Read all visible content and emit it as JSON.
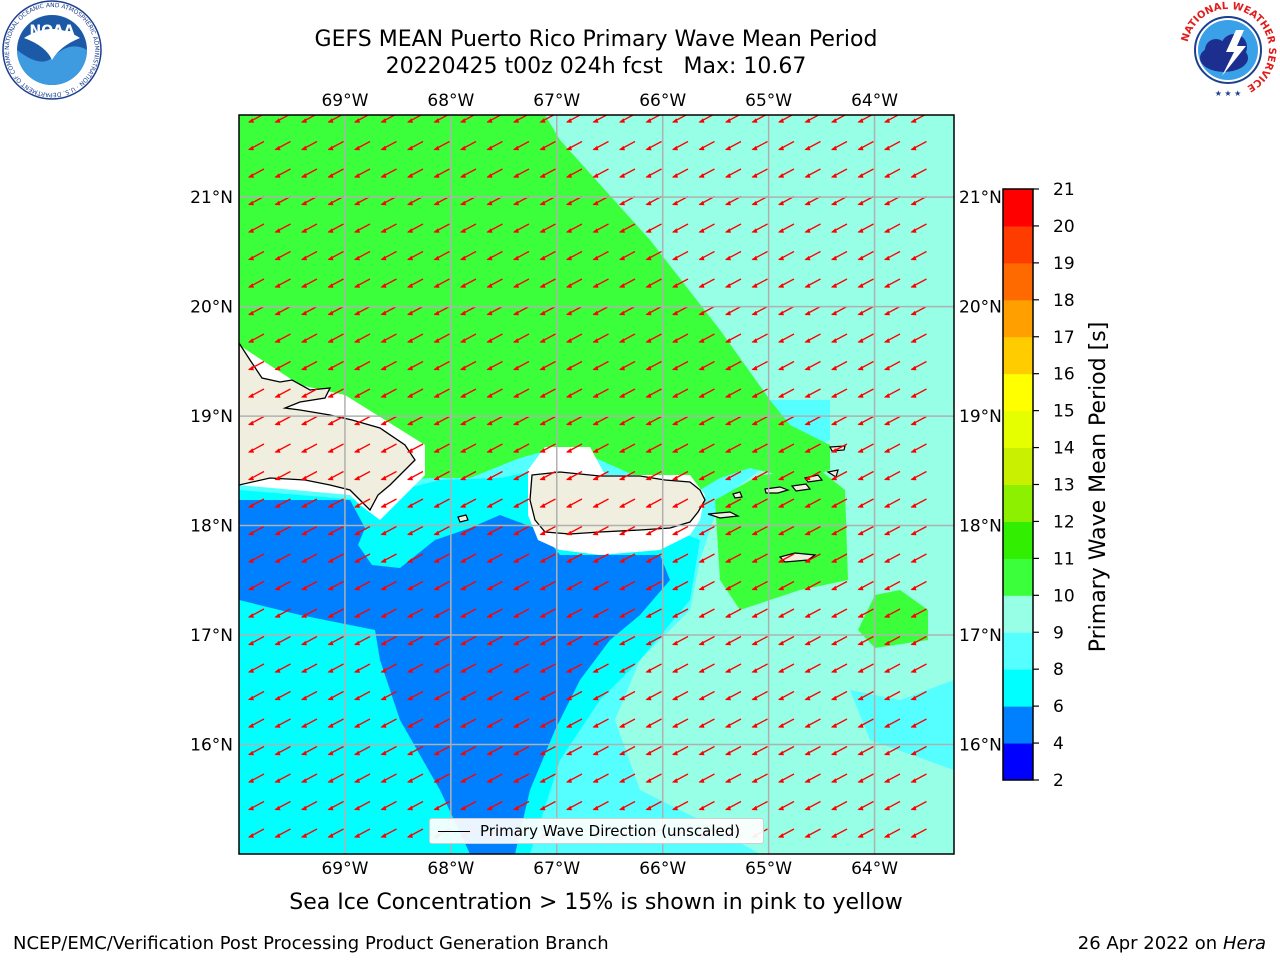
{
  "title": {
    "line1": "GEFS MEAN Puerto Rico Primary Wave Mean Period",
    "line2": "20220425 t00z 024h fcst   Max: 10.67"
  },
  "logos": {
    "left": {
      "text": "NOAA",
      "icon": "noaa-logo-icon",
      "ring_text": "NATIONAL OCEANIC AND ATMOSPHERIC ADMINISTRATION · U.S. DEPARTMENT OF COMMERCE"
    },
    "right": {
      "icon": "nws-logo-icon",
      "ring_text": "NATIONAL WEATHER SERVICE"
    }
  },
  "map": {
    "lon_range": [
      -70.0,
      -63.25
    ],
    "lat_range": [
      15.0,
      21.75
    ],
    "lon_ticks": [
      {
        "value": -69,
        "label": "69°W"
      },
      {
        "value": -68,
        "label": "68°W"
      },
      {
        "value": -67,
        "label": "67°W"
      },
      {
        "value": -66,
        "label": "66°W"
      },
      {
        "value": -65,
        "label": "65°W"
      },
      {
        "value": -64,
        "label": "64°W"
      }
    ],
    "lat_ticks": [
      {
        "value": 21,
        "label": "21°N"
      },
      {
        "value": 20,
        "label": "20°N"
      },
      {
        "value": 19,
        "label": "19°N"
      },
      {
        "value": 18,
        "label": "18°N"
      },
      {
        "value": 17,
        "label": "17°N"
      },
      {
        "value": 16,
        "label": "16°N"
      }
    ],
    "arrow_color": "#ff0000",
    "arrow_heading": "toward the west-southwest",
    "land_color": "#f0eedf"
  },
  "colorbar": {
    "label": "Primary Wave Mean Period [s]",
    "bounds": [
      2,
      4,
      6,
      8,
      9,
      10,
      11,
      12,
      13,
      14,
      15,
      16,
      17,
      18,
      19,
      20,
      21
    ],
    "colors": [
      "#0000ff",
      "#0080ff",
      "#00ffff",
      "#55ffff",
      "#96ffe6",
      "#3cff3c",
      "#32ee00",
      "#8cf000",
      "#c8f000",
      "#e6ff00",
      "#ffff00",
      "#ffcc00",
      "#ffa000",
      "#ff6a00",
      "#ff3c00",
      "#ff0000"
    ]
  },
  "legend": {
    "label": "Primary Wave Direction (unscaled)"
  },
  "sea_ice_note": "Sea Ice Concentration > 15% is shown in pink to yellow",
  "footer": {
    "left": "NCEP/EMC/Verification Post Processing Product Generation Branch",
    "right_prefix": "26 Apr 2022 on ",
    "right_machine": "Hera"
  }
}
